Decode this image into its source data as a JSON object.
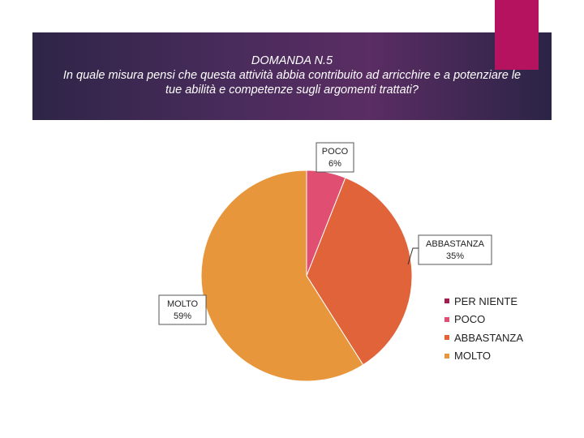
{
  "slide": {
    "title_line1": "DOMANDA N.5",
    "title_line2": "In quale misura pensi che questa attività abbia contribuito ad arricchire e a potenziare le",
    "title_line3": "tue abilità e competenze sugli argomenti trattati?"
  },
  "chart_data": {
    "type": "pie",
    "categories": [
      "PER NIENTE",
      "POCO",
      "ABBASTANZA",
      "MOLTO"
    ],
    "values": [
      0,
      6,
      35,
      59
    ],
    "value_labels": [
      "",
      "6%",
      "35%",
      "59%"
    ],
    "colors": [
      "#9e1f4d",
      "#e04e72",
      "#e0633a",
      "#e8963c"
    ],
    "legend_position": "right"
  }
}
